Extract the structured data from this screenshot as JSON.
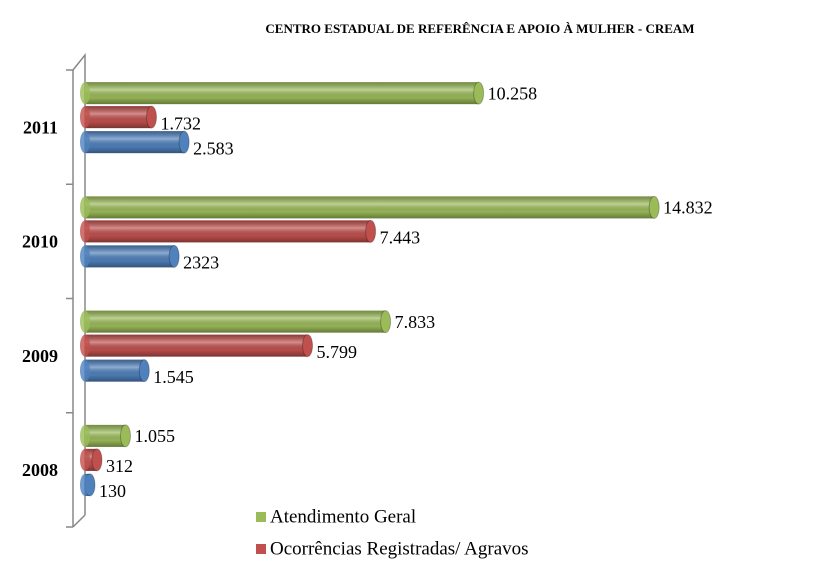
{
  "chart_data": {
    "type": "bar",
    "orientation": "horizontal",
    "title": "CENTRO ESTADUAL DE REFERÊNCIA E APOIO À MULHER - CREAM",
    "categories": [
      "2011",
      "2010",
      "2009",
      "2008"
    ],
    "series": [
      {
        "name": "Atendimento Geral",
        "color": "#9bbb59",
        "values": [
          10258,
          14832,
          7833,
          1055
        ],
        "value_labels": [
          "10.258",
          "14.832",
          "7.833",
          "1.055"
        ]
      },
      {
        "name": "Ocorrências Registradas/ Agravos",
        "color": "#c0504d",
        "values": [
          1732,
          7443,
          5799,
          312
        ],
        "value_labels": [
          "1.732",
          "7.443",
          "5.799",
          "312"
        ]
      },
      {
        "color": "#4f81bd",
        "values": [
          2583,
          2323,
          1545,
          130
        ],
        "value_labels": [
          "2.583",
          "2323",
          "1.545",
          "130"
        ]
      }
    ],
    "xlim": [
      0,
      16000
    ]
  }
}
